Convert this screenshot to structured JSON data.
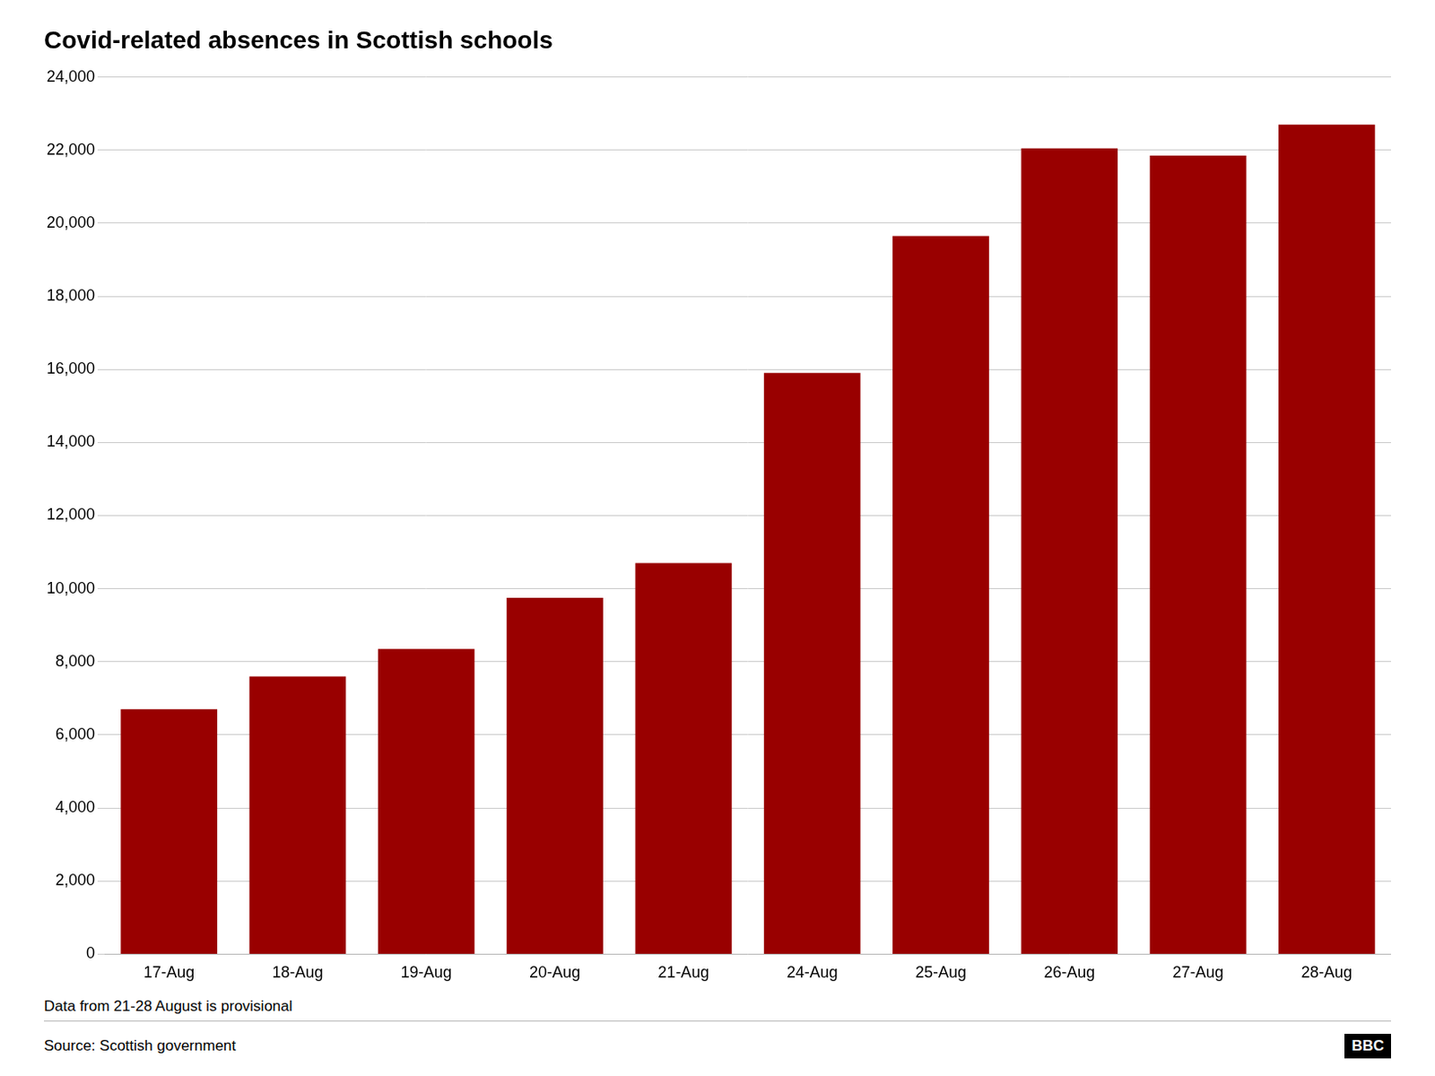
{
  "chart_data": {
    "type": "bar",
    "title": "Covid-related absences in Scottish schools",
    "categories": [
      "17-Aug",
      "18-Aug",
      "19-Aug",
      "20-Aug",
      "21-Aug",
      "24-Aug",
      "25-Aug",
      "26-Aug",
      "27-Aug",
      "28-Aug"
    ],
    "values": [
      6700,
      7600,
      8350,
      9750,
      10700,
      15900,
      19650,
      22050,
      21850,
      22700
    ],
    "color": "#990000",
    "ylim": [
      0,
      24000
    ],
    "yticks": [
      0,
      {
        "value": 2000,
        "label": "2,000"
      },
      {
        "value": 4000,
        "label": "4,000"
      },
      {
        "value": 6000,
        "label": "6,000"
      },
      {
        "value": 8000,
        "label": "8,000"
      },
      {
        "value": 10000,
        "label": "10,000"
      },
      {
        "value": 12000,
        "label": "12,000"
      },
      {
        "value": 14000,
        "label": "14,000"
      },
      {
        "value": 16000,
        "label": "16,000"
      },
      {
        "value": 18000,
        "label": "18,000"
      },
      {
        "value": 20000,
        "label": "20,000"
      },
      {
        "value": 22000,
        "label": "22,000"
      },
      {
        "value": 24000,
        "label": "24,000"
      }
    ],
    "grid": true,
    "annotations": [
      "Data from 21-28 August is provisional",
      "Source: Scottish government",
      "BBC"
    ]
  }
}
